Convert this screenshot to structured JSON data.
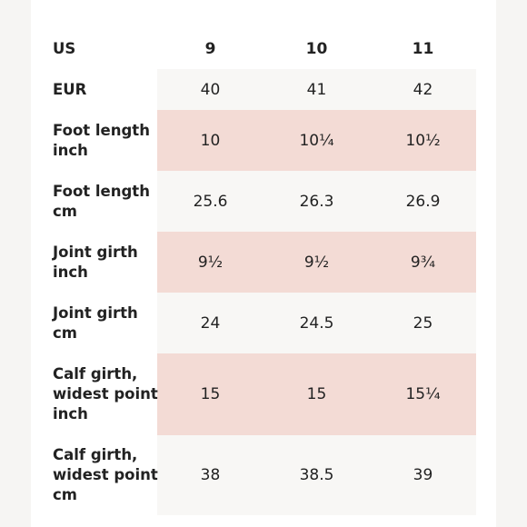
{
  "table": {
    "header": {
      "label": "US",
      "sizes": [
        "9",
        "10",
        "11"
      ]
    },
    "rows": [
      {
        "label_lines": [
          "EUR"
        ],
        "values": [
          "40",
          "41",
          "42"
        ],
        "tint": "light"
      },
      {
        "label_lines": [
          "Foot length",
          "inch"
        ],
        "values": [
          "10",
          "10¼",
          "10½"
        ],
        "tint": "pink"
      },
      {
        "label_lines": [
          "Foot length",
          "cm"
        ],
        "values": [
          "25.6",
          "26.3",
          "26.9"
        ],
        "tint": "light"
      },
      {
        "label_lines": [
          "Joint girth",
          "inch"
        ],
        "values": [
          "9½",
          "9½",
          "9¾"
        ],
        "tint": "pink"
      },
      {
        "label_lines": [
          "Joint girth",
          "cm"
        ],
        "values": [
          "24",
          "24.5",
          "25"
        ],
        "tint": "light"
      },
      {
        "label_lines": [
          "Calf girth,",
          "widest point",
          "inch"
        ],
        "values": [
          "15",
          "15",
          "15¼"
        ],
        "tint": "pink"
      },
      {
        "label_lines": [
          "Calf girth,",
          "widest point",
          "cm"
        ],
        "values": [
          "38",
          "38.5",
          "39"
        ],
        "tint": "light"
      }
    ]
  },
  "colors": {
    "page_background": "#f6f5f3",
    "card_background": "#ffffff",
    "row_tint_light": "#f8f7f5",
    "row_tint_pink": "#f3dbd5",
    "text": "#222222"
  }
}
